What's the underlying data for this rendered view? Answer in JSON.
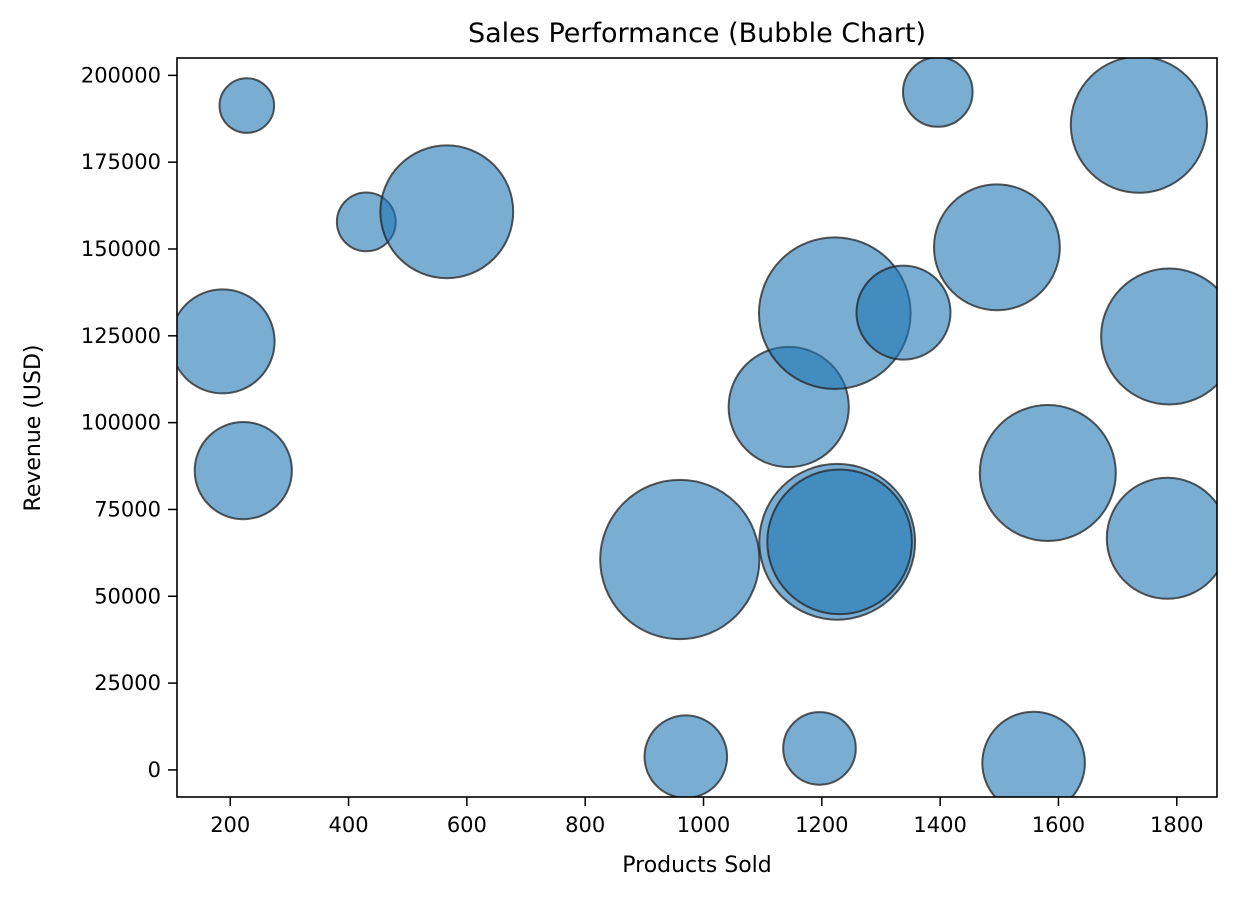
{
  "chart_data": {
    "type": "scatter",
    "title": "Sales Performance (Bubble Chart)",
    "xlabel": "Products Sold",
    "ylabel": "Revenue (USD)",
    "xlim": [
      110,
      1868
    ],
    "ylim": [
      -7800,
      205000
    ],
    "xticks": [
      200,
      400,
      600,
      800,
      1000,
      1200,
      1400,
      1600,
      1800
    ],
    "xtick_labels": [
      "200",
      "400",
      "600",
      "800",
      "1000",
      "1200",
      "1400",
      "1600",
      "1800"
    ],
    "yticks": [
      0,
      25000,
      50000,
      75000,
      100000,
      125000,
      150000,
      175000,
      200000
    ],
    "ytick_labels": [
      "0",
      "25000",
      "50000",
      "75000",
      "100000",
      "125000",
      "150000",
      "175000",
      "200000"
    ],
    "grid": false,
    "bubble_color": "#1f77b4",
    "bubble_alpha": 0.6,
    "edge_color": "#222222",
    "points": [
      {
        "x": 228,
        "y": 191300,
        "size": 500
      },
      {
        "x": 430,
        "y": 157800,
        "size": 580
      },
      {
        "x": 566,
        "y": 160700,
        "size": 2950
      },
      {
        "x": 187,
        "y": 123400,
        "size": 1810
      },
      {
        "x": 222,
        "y": 86200,
        "size": 1580
      },
      {
        "x": 960,
        "y": 60600,
        "size": 4240
      },
      {
        "x": 970,
        "y": 3800,
        "size": 1140
      },
      {
        "x": 1196,
        "y": 6200,
        "size": 880
      },
      {
        "x": 1144,
        "y": 104500,
        "size": 2420
      },
      {
        "x": 1222,
        "y": 131500,
        "size": 3850
      },
      {
        "x": 1338,
        "y": 131700,
        "size": 1480
      },
      {
        "x": 1226,
        "y": 65700,
        "size": 4060
      },
      {
        "x": 1230,
        "y": 65700,
        "size": 3500
      },
      {
        "x": 1396,
        "y": 195200,
        "size": 810
      },
      {
        "x": 1496,
        "y": 150500,
        "size": 2650
      },
      {
        "x": 1582,
        "y": 85500,
        "size": 3100
      },
      {
        "x": 1558,
        "y": 2000,
        "size": 1760
      },
      {
        "x": 1736,
        "y": 185800,
        "size": 3110
      },
      {
        "x": 1787,
        "y": 124800,
        "size": 3100
      },
      {
        "x": 1784,
        "y": 66700,
        "size": 2450
      }
    ]
  }
}
